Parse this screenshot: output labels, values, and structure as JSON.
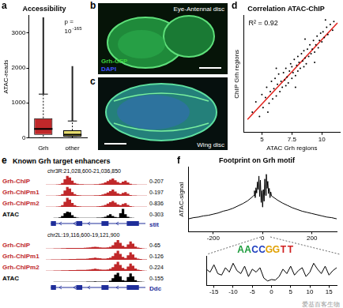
{
  "chart_data": [
    {
      "panel": "a",
      "type": "boxplot",
      "title": "Accessibility",
      "y_label": "ATAC-reads",
      "categories": [
        "Grh",
        "other"
      ],
      "colors": [
        "#c0282a",
        "#e6dc6e"
      ],
      "boxes": [
        {
          "whisker_low": 0,
          "q1": 80,
          "median": 250,
          "q3": 560,
          "whisker_high": 1250,
          "outlier_max": 3450
        },
        {
          "whisker_low": 0,
          "q1": 30,
          "median": 90,
          "q3": 210,
          "whisker_high": 480,
          "outlier_max": 2050
        }
      ],
      "annotation": {
        "text": "p =",
        "base": "10",
        "exponent": "-165"
      },
      "ylim": [
        0,
        3500
      ],
      "yticks": [
        0,
        1000,
        2000,
        3000
      ],
      "grid": false
    },
    {
      "panel": "d",
      "type": "scatter",
      "title": "Correlation ATAC-ChIP",
      "x_label": "ATAC Grh regions",
      "y_label": "ChIP Grh regions",
      "x": [
        4.2,
        4.5,
        4.8,
        5.0,
        5.1,
        5.3,
        5.4,
        5.6,
        5.7,
        5.8,
        5.9,
        6.0,
        6.1,
        6.2,
        6.3,
        6.4,
        6.5,
        6.6,
        6.7,
        6.8,
        6.9,
        7.0,
        7.0,
        7.1,
        7.2,
        7.3,
        7.4,
        7.5,
        7.5,
        7.6,
        7.7,
        7.8,
        7.9,
        8.0,
        8.0,
        8.1,
        8.2,
        8.3,
        8.4,
        8.5,
        8.5,
        8.6,
        8.7,
        8.8,
        8.9,
        9.0,
        9.1,
        9.2,
        9.3,
        9.4,
        9.5,
        9.6,
        9.7,
        9.8,
        9.9,
        10.0,
        10.1,
        10.2,
        10.4,
        10.5,
        10.7,
        10.9,
        11.0,
        6.2,
        7.8,
        8.6,
        9.4,
        5.5,
        10.3
      ],
      "values": [
        4.9,
        5.6,
        4.6,
        6.1,
        5.2,
        5.9,
        6.6,
        5.5,
        6.3,
        7.0,
        5.8,
        6.5,
        7.2,
        6.0,
        6.8,
        7.5,
        6.3,
        7.0,
        6.6,
        7.6,
        7.1,
        6.7,
        7.9,
        7.3,
        6.9,
        7.7,
        8.2,
        7.2,
        8.0,
        7.6,
        8.5,
        7.4,
        8.1,
        8.7,
        7.7,
        8.3,
        7.9,
        8.9,
        8.4,
        8.0,
        9.1,
        8.6,
        8.2,
        9.2,
        8.7,
        9.5,
        8.9,
        9.2,
        9.8,
        9.0,
        9.5,
        10.1,
        9.3,
        9.8,
        10.3,
        9.7,
        10.4,
        10.0,
        10.7,
        10.2,
        10.9,
        10.5,
        11.1,
        7.9,
        6.6,
        9.9,
        8.3,
        4.9,
        11.2
      ],
      "color": "#000000",
      "fit": {
        "x": [
          3.8,
          11.3
        ],
        "values": [
          4.4,
          11.0
        ],
        "color": "#e0201a"
      },
      "annotation": "R² = 0.92",
      "xlim": [
        3.5,
        11.5
      ],
      "xticks": [
        5,
        7.5,
        10
      ],
      "ylim": [
        3.5,
        11.5
      ],
      "tick_labels": "x",
      "grid": false
    },
    {
      "panel": "f",
      "type": "line",
      "title": "Footprint on Grh motif",
      "y_label": "ATAC-signal",
      "x": [
        -300,
        -280,
        -260,
        -240,
        -220,
        -200,
        -180,
        -160,
        -140,
        -120,
        -100,
        -80,
        -60,
        -40,
        -36,
        -33,
        -30,
        -27,
        -24,
        -21,
        -18,
        -15,
        -12,
        -9,
        -6,
        -3,
        0,
        3,
        6,
        9,
        12,
        15,
        18,
        21,
        24,
        27,
        30,
        33,
        36,
        40,
        60,
        80,
        100,
        120,
        140,
        160,
        180,
        200,
        220,
        240,
        260,
        280,
        300
      ],
      "values": [
        0.22,
        0.24,
        0.25,
        0.27,
        0.28,
        0.3,
        0.32,
        0.35,
        0.37,
        0.4,
        0.44,
        0.48,
        0.53,
        0.6,
        0.62,
        0.7,
        0.58,
        0.75,
        0.66,
        0.85,
        0.72,
        0.95,
        0.6,
        0.88,
        0.5,
        0.7,
        0.42,
        0.72,
        0.52,
        0.9,
        0.62,
        0.98,
        0.74,
        0.86,
        0.65,
        0.74,
        0.58,
        0.68,
        0.61,
        0.6,
        0.54,
        0.49,
        0.45,
        0.41,
        0.38,
        0.35,
        0.33,
        0.31,
        0.29,
        0.27,
        0.25,
        0.24,
        0.22
      ],
      "color": "#000000",
      "xlim": [
        -300,
        300
      ],
      "xticks": [
        -200,
        0,
        200
      ],
      "ylim": [
        0,
        1.1
      ],
      "tick_labels": "x",
      "grid": false
    },
    {
      "panel": "f",
      "type": "line",
      "motif": "AACCGGTT",
      "x": [
        -17,
        -16,
        -15,
        -14,
        -13,
        -12,
        -11,
        -10,
        -9,
        -8,
        -7,
        -6,
        -5,
        -4,
        -3,
        -2,
        -1,
        0,
        1,
        2,
        3,
        4,
        5,
        6,
        7,
        8,
        9,
        10,
        11,
        12,
        13,
        14,
        15,
        16,
        17
      ],
      "values": [
        0.55,
        0.45,
        0.7,
        0.4,
        0.35,
        0.6,
        0.45,
        0.75,
        0.5,
        0.4,
        0.65,
        0.3,
        0.55,
        0.45,
        0.6,
        0.25,
        0.15,
        0.2,
        0.18,
        0.3,
        0.55,
        0.4,
        0.65,
        0.35,
        0.5,
        0.6,
        0.3,
        0.45,
        0.75,
        0.55,
        0.4,
        0.65,
        0.35,
        0.5,
        0.6
      ],
      "color": "#000000",
      "xlim": [
        -17,
        17
      ],
      "xticks": [
        -15,
        -10,
        -5,
        0,
        5,
        10,
        15
      ],
      "ylim": [
        0,
        1
      ],
      "tick_labels": "x",
      "grid": false
    }
  ],
  "images": [
    {
      "panel": "b",
      "label": "Eye-Antennal disc",
      "stains": [
        {
          "name": "Grh-GFP",
          "color": "#3cd23c"
        },
        {
          "name": "DAPI",
          "color": "#4050ff"
        }
      ]
    },
    {
      "panel": "c",
      "label": "Wing disc",
      "stains": []
    }
  ],
  "genome_tracks": {
    "panel": "e",
    "title": "Known Grh target enhancers",
    "regions": [
      {
        "coordinates": "chr3R:21,028,600-21,036,850",
        "gene": "stit",
        "gene_color": "#1f2e9a",
        "tracks": [
          {
            "name": "Grh-ChIP",
            "color": "#c0282a",
            "scale": {
              "value": [
                0,
                207
              ],
              "label": "0-207"
            },
            "values": [
              4,
              4,
              5,
              6,
              8,
              14,
              40,
              120,
              195,
              160,
              90,
              40,
              20,
              14,
              12,
              10,
              8,
              8,
              10,
              12,
              14,
              20,
              30,
              50,
              80,
              110,
              140,
              100,
              60,
              40,
              70,
              90,
              50,
              20,
              10,
              8,
              6,
              5,
              5,
              4
            ]
          },
          {
            "name": "Grh-ChIPm1",
            "color": "#c0282a",
            "scale": {
              "value": [
                0,
                197
              ],
              "label": "0-197"
            },
            "values": [
              3,
              4,
              4,
              6,
              8,
              12,
              35,
              110,
              185,
              150,
              80,
              35,
              18,
              12,
              10,
              9,
              8,
              8,
              9,
              11,
              13,
              18,
              28,
              45,
              70,
              100,
              130,
              90,
              55,
              35,
              60,
              80,
              45,
              18,
              9,
              7,
              5,
              4,
              4,
              3
            ]
          },
          {
            "name": "Grh-ChIPm2",
            "color": "#c0282a",
            "scale": {
              "value": [
                0,
                836
              ],
              "label": "0-836"
            },
            "values": [
              10,
              12,
              15,
              20,
              30,
              50,
              150,
              450,
              800,
              650,
              350,
              150,
              70,
              50,
              40,
              35,
              30,
              30,
              35,
              40,
              50,
              70,
              110,
              180,
              300,
              420,
              520,
              380,
              220,
              150,
              260,
              330,
              180,
              70,
              35,
              25,
              20,
              15,
              12,
              10
            ]
          },
          {
            "name": "ATAC",
            "color": "#000000",
            "scale": {
              "value": [
                0,
                303
              ],
              "label": "0-303"
            },
            "values": [
              2,
              2,
              3,
              5,
              8,
              20,
              60,
              150,
              200,
              180,
              90,
              30,
              10,
              5,
              5,
              5,
              5,
              5,
              5,
              8,
              10,
              15,
              20,
              40,
              80,
              120,
              60,
              30,
              20,
              150,
              290,
              120,
              40,
              10,
              5,
              3,
              3,
              2,
              2,
              2
            ]
          }
        ]
      },
      {
        "coordinates": "chr2L:19,116,600-19,121,900",
        "gene": "Ddc",
        "gene_color": "#1f2e9a",
        "tracks": [
          {
            "name": "Grh-ChIP",
            "color": "#c0282a",
            "scale": {
              "value": [
                0,
                65
              ],
              "label": "0-65"
            },
            "values": [
              2,
              2,
              2,
              3,
              3,
              3,
              4,
              4,
              5,
              5,
              5,
              6,
              6,
              6,
              6,
              7,
              8,
              10,
              12,
              14,
              12,
              10,
              8,
              8,
              10,
              14,
              25,
              45,
              60,
              40,
              20,
              12,
              30,
              50,
              35,
              15,
              8,
              5,
              3,
              2
            ]
          },
          {
            "name": "Grh-ChIPm1",
            "color": "#c0282a",
            "scale": {
              "value": [
                0,
                126
              ],
              "label": "0-126"
            },
            "values": [
              3,
              3,
              4,
              5,
              5,
              6,
              7,
              8,
              9,
              10,
              10,
              11,
              12,
              12,
              12,
              14,
              16,
              20,
              24,
              28,
              24,
              20,
              16,
              16,
              20,
              28,
              50,
              90,
              120,
              80,
              40,
              24,
              60,
              100,
              70,
              30,
              16,
              10,
              6,
              4
            ]
          },
          {
            "name": "Grh-ChIPm2",
            "color": "#c0282a",
            "scale": {
              "value": [
                0,
                224
              ],
              "label": "0-224"
            },
            "values": [
              5,
              6,
              7,
              8,
              9,
              10,
              12,
              14,
              16,
              18,
              18,
              20,
              22,
              22,
              22,
              25,
              28,
              35,
              42,
              50,
              42,
              35,
              28,
              28,
              35,
              50,
              90,
              160,
              215,
              140,
              70,
              42,
              105,
              175,
              120,
              55,
              28,
              18,
              10,
              7
            ]
          },
          {
            "name": "ATAC",
            "color": "#000000",
            "scale": {
              "value": [
                0,
                155
              ],
              "label": "0-155"
            },
            "values": [
              1,
              1,
              1,
              2,
              2,
              2,
              2,
              3,
              3,
              3,
              3,
              4,
              4,
              4,
              4,
              4,
              5,
              6,
              8,
              10,
              8,
              6,
              5,
              5,
              8,
              20,
              60,
              120,
              150,
              90,
              30,
              20,
              80,
              140,
              90,
              30,
              10,
              5,
              2,
              1
            ]
          }
        ]
      }
    ]
  },
  "watermark": "爱基百客生物"
}
